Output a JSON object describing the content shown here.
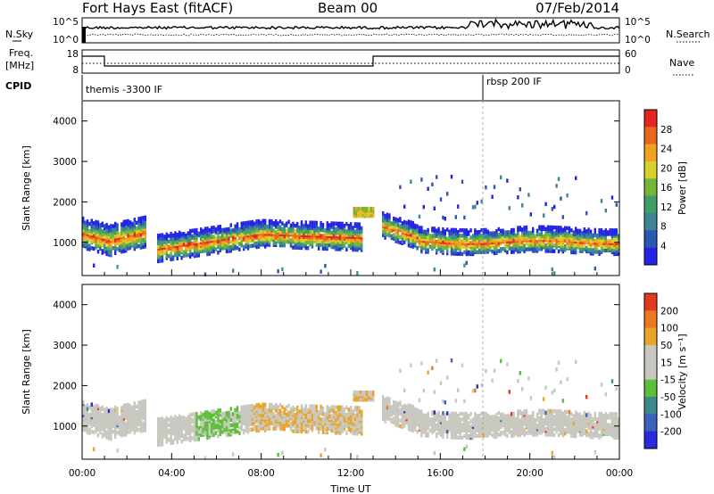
{
  "header": {
    "station": "Fort Hays East (fitACF)",
    "beam": "Beam 00",
    "date": "07/Feb/2014"
  },
  "noise_panel": {
    "left_label": "N.Sky",
    "right_label": "N.Search",
    "left_ticks": [
      "10^5",
      "10^0"
    ],
    "right_ticks": [
      "10^5",
      "10^0"
    ]
  },
  "freq_panel": {
    "left_label_line1": "Freq.",
    "left_label_line2": "[MHz]",
    "right_label": "Nave",
    "left_ticks": [
      "18",
      "8"
    ],
    "right_ticks": [
      "60",
      "0"
    ]
  },
  "cpid_panel": {
    "label": "CPID",
    "segments": [
      "themis -3300 IF",
      "rbsp 200 IF"
    ]
  },
  "chart_data": [
    {
      "type": "heatmap",
      "title": "",
      "ylabel": "Slant Range [km]",
      "xlabel": "",
      "ylim": [
        180,
        4500
      ],
      "yticks": [
        "1000",
        "2000",
        "3000",
        "4000"
      ],
      "colorbar": {
        "label": "Power [dB]",
        "ticks": [
          "4",
          "8",
          "12",
          "16",
          "20",
          "24",
          "28"
        ],
        "range": [
          0,
          32
        ],
        "colors": [
          "#2424e6",
          "#2a57b5",
          "#3d8595",
          "#3f9d6a",
          "#74b53a",
          "#d9d12b",
          "#f1a31f",
          "#e9671f",
          "#e42621"
        ]
      }
    },
    {
      "type": "heatmap",
      "title": "",
      "ylabel": "Slant Range [km]",
      "xlabel": "Time UT",
      "ylim": [
        180,
        4500
      ],
      "yticks": [
        "1000",
        "2000",
        "3000",
        "4000"
      ],
      "xticks": [
        "00:00",
        "04:00",
        "08:00",
        "12:00",
        "16:00",
        "20:00",
        "00:00"
      ],
      "colorbar": {
        "label": "Velocity [m s⁻¹]",
        "ticks": [
          "200",
          "100",
          "50",
          "15",
          "-15",
          "-50",
          "-100",
          "-200"
        ],
        "colors": [
          "#2a2adc",
          "#3a62bd",
          "#3c8a8c",
          "#5cc03a",
          "#c8c8c0",
          "#c8c8c0",
          "#e9a52a",
          "#ea7a22",
          "#e23a22"
        ]
      }
    }
  ]
}
